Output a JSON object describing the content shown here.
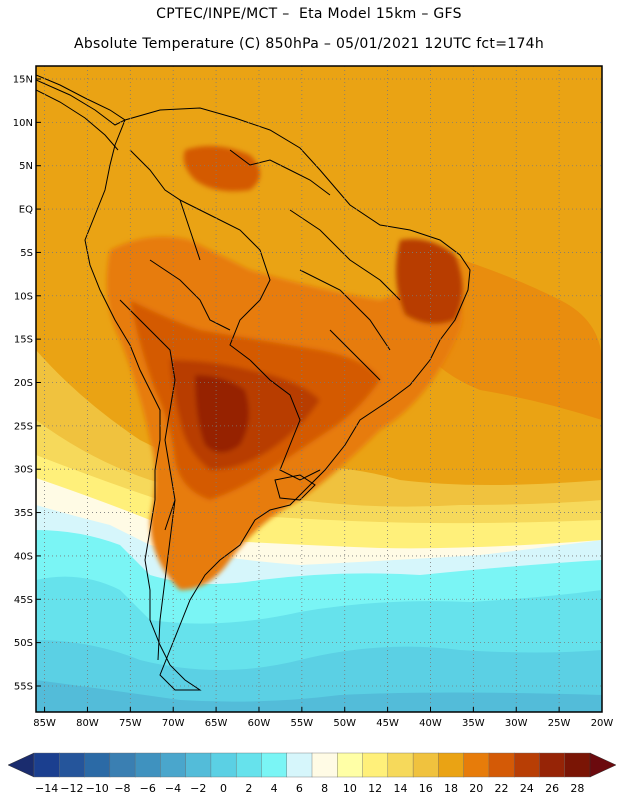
{
  "header": {
    "line1": "CPTEC/INPE/MCT –  Eta Model 15km – GFS",
    "line2": "Absolute Temperature (C) 850hPa – 05/01/2021 12UTC fct=174h"
  },
  "map": {
    "region": "South America",
    "lat_labels": [
      "15N",
      "10N",
      "5N",
      "EQ",
      "5S",
      "10S",
      "15S",
      "20S",
      "25S",
      "30S",
      "35S",
      "40S",
      "45S",
      "50S",
      "55S"
    ],
    "lon_labels": [
      "85W",
      "80W",
      "75W",
      "70W",
      "65W",
      "60W",
      "55W",
      "50W",
      "45W",
      "40W",
      "35W",
      "30W",
      "25W",
      "20W"
    ],
    "lat_range": [
      -58,
      16.5
    ],
    "lon_range": [
      -86,
      -20
    ]
  },
  "colorbar": {
    "labels": [
      "-14",
      "-12",
      "-10",
      "-8",
      "-6",
      "-4",
      "-2",
      "0",
      "2",
      "4",
      "6",
      "8",
      "10",
      "12",
      "14",
      "16",
      "18",
      "20",
      "22",
      "24",
      "26",
      "28"
    ],
    "colors": [
      "#1b3f8f",
      "#25559b",
      "#2b6aa6",
      "#3a7fb2",
      "#3f92bf",
      "#4aa6cc",
      "#53bcd9",
      "#5bd0e4",
      "#66e2ec",
      "#7af5f5",
      "#d6f6fb",
      "#fffbe5",
      "#ffffa6",
      "#fff07a",
      "#f6d95b",
      "#f0c23e",
      "#eaa314",
      "#e77c0a",
      "#d45a06",
      "#b83e05",
      "#962406",
      "#7a1505"
    ],
    "arrow_left_color": "#1a2c6e",
    "arrow_right_color": "#6b0a0e"
  }
}
